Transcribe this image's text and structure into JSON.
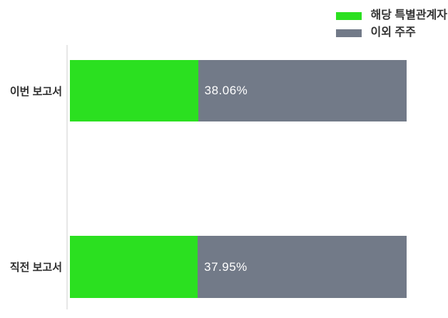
{
  "colors": {
    "special_related_green": "#2BE020",
    "other_shareholders_gray": "#727A88",
    "axis_line": "#E7E7E7",
    "category_label_text": "#2D2D2D",
    "legend_text": "#333333",
    "value_label_text": "#FFFFFF",
    "background": "#FFFFFF"
  },
  "chart_data": {
    "type": "bar",
    "orientation": "horizontal",
    "stacked": true,
    "title": "",
    "xlabel": "",
    "ylabel": "",
    "xlim": [
      0,
      100
    ],
    "grid": false,
    "legend_position": "top-right",
    "categories": [
      "이번 보고서",
      "직전 보고서"
    ],
    "series": [
      {
        "name": "해당 특별관계자",
        "color": "#2BE020",
        "values": [
          38.06,
          37.95
        ]
      },
      {
        "name": "이외 주주",
        "color": "#727A88",
        "values": [
          61.94,
          62.05
        ]
      }
    ],
    "value_labels": [
      "38.06%",
      "37.95%"
    ]
  }
}
